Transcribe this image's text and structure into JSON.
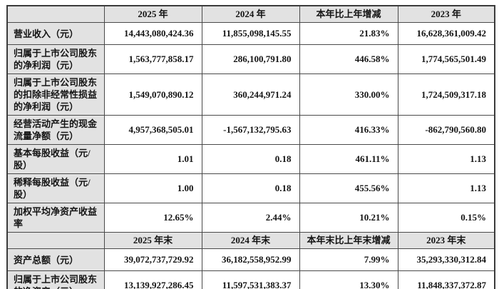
{
  "table": {
    "name": "主要会计数据和财务指标",
    "style": {
      "header_bg": "#e2e2e2",
      "cell_bg": "#ffffff",
      "border_color": "#4a4a4a",
      "text_color": "#141414"
    },
    "sections": [
      {
        "headers": [
          "",
          "2025 年",
          "2024 年",
          "本年比上年增减",
          "2023 年"
        ],
        "rows": [
          {
            "label": "营业收入（元）",
            "values": [
              "14,443,080,424.36",
              "11,855,098,145.55",
              "21.83%",
              "16,628,361,009.42"
            ]
          },
          {
            "label": "归属于上市公司股东的净利润（元）",
            "values": [
              "1,563,777,858.17",
              "286,100,791.80",
              "446.58%",
              "1,774,565,501.49"
            ]
          },
          {
            "label": "归属于上市公司股东的扣除非经常性损益的净利润（元）",
            "values": [
              "1,549,070,890.12",
              "360,244,971.24",
              "330.00%",
              "1,724,509,317.18"
            ]
          },
          {
            "label": "经营活动产生的现金流量净额（元）",
            "values": [
              "4,957,368,505.01",
              "-1,567,132,795.63",
              "416.33%",
              "-862,790,560.80"
            ]
          },
          {
            "label": "基本每股收益（元/股）",
            "values": [
              "1.01",
              "0.18",
              "461.11%",
              "1.13"
            ]
          },
          {
            "label": "稀释每股收益（元/股）",
            "values": [
              "1.00",
              "0.18",
              "455.56%",
              "1.13"
            ]
          },
          {
            "label": "加权平均净资产收益率",
            "values": [
              "12.65%",
              "2.44%",
              "10.21%",
              "0.15%"
            ]
          }
        ]
      },
      {
        "headers": [
          "",
          "2025 年末",
          "2024 年末",
          "本年末比上年末增减",
          "2023 年末"
        ],
        "rows": [
          {
            "label": "资产总额（元）",
            "values": [
              "39,072,737,729.92",
              "36,182,558,952.99",
              "7.99%",
              "35,293,330,312.84"
            ]
          },
          {
            "label": "归属于上市公司股东的净资产（元）",
            "values": [
              "13,139,927,286.45",
              "11,597,531,383.37",
              "13.30%",
              "11,848,337,372.87"
            ]
          }
        ]
      }
    ]
  }
}
